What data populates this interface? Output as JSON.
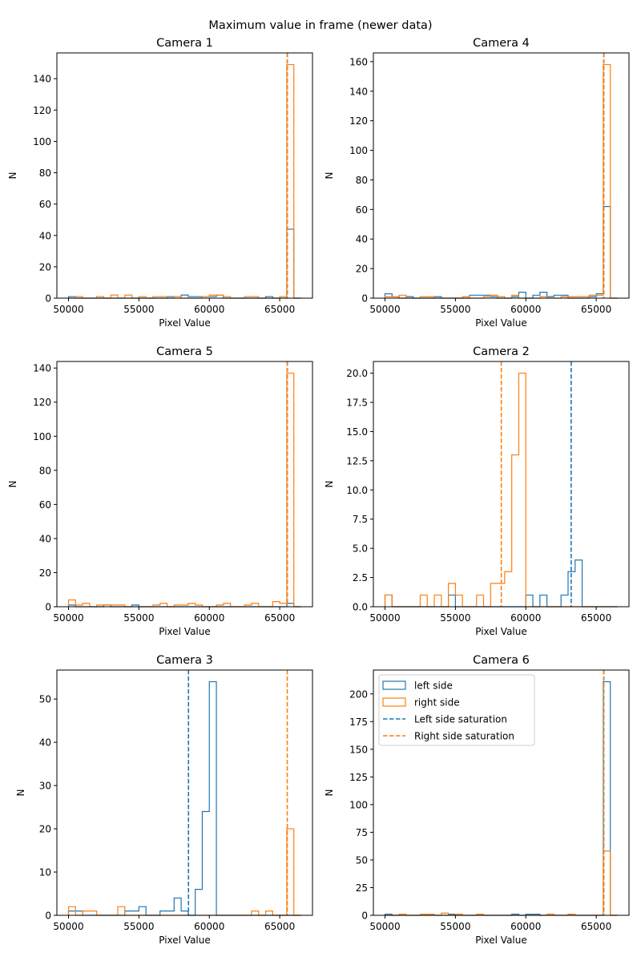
{
  "chart_data": {
    "type": "histogram",
    "title": "Maximum value in frame (newer data)",
    "colors": {
      "left": "#1f77b4",
      "right": "#ff7f0e"
    },
    "bins": {
      "start": 50000,
      "width": 500,
      "count": 33
    },
    "xlim": [
      49175,
      67325
    ],
    "xticks": [
      50000,
      55000,
      60000,
      65000
    ],
    "xlabel": "Pixel Value",
    "ylabel": "N",
    "legend": {
      "location": "upper-left",
      "panel": "Camera 6",
      "entries": [
        "left side",
        "right side",
        "Left side saturation",
        "Right side saturation"
      ]
    },
    "panels": [
      {
        "title": "Camera 1",
        "ylim": [
          0,
          156.45
        ],
        "yticks": [
          0,
          20,
          40,
          60,
          80,
          100,
          120,
          140
        ],
        "yticklabels": [
          "0",
          "20",
          "40",
          "60",
          "80",
          "100",
          "120",
          "140"
        ],
        "left": [
          1,
          0,
          0,
          0,
          0,
          0,
          0,
          0,
          0,
          0,
          0,
          0,
          0,
          0,
          1,
          1,
          2,
          1,
          1,
          1,
          1,
          2,
          0,
          0,
          0,
          0,
          0,
          0,
          1,
          0,
          0,
          44,
          0
        ],
        "right": [
          0,
          1,
          0,
          0,
          1,
          0,
          2,
          0,
          2,
          0,
          1,
          0,
          1,
          1,
          0,
          1,
          0,
          0,
          0,
          1,
          2,
          2,
          1,
          0,
          0,
          1,
          1,
          0,
          0,
          0,
          1,
          149,
          0
        ],
        "left_saturation": 65535,
        "right_saturation": 65535
      },
      {
        "title": "Camera 4",
        "ylim": [
          0,
          165.9
        ],
        "yticks": [
          0,
          20,
          40,
          60,
          80,
          100,
          120,
          140,
          160
        ],
        "yticklabels": [
          "0",
          "20",
          "40",
          "60",
          "80",
          "100",
          "120",
          "140",
          "160"
        ],
        "left": [
          3,
          1,
          0,
          1,
          0,
          0,
          0,
          1,
          0,
          0,
          0,
          0,
          2,
          2,
          2,
          1,
          0,
          0,
          1,
          4,
          0,
          2,
          4,
          1,
          2,
          2,
          0,
          0,
          0,
          1,
          3,
          62,
          0
        ],
        "right": [
          1,
          1,
          2,
          0,
          0,
          1,
          1,
          0,
          0,
          0,
          0,
          1,
          0,
          0,
          1,
          2,
          1,
          0,
          2,
          0,
          0,
          0,
          1,
          0,
          0,
          1,
          1,
          1,
          1,
          2,
          2,
          158,
          0
        ],
        "left_saturation": 65535,
        "right_saturation": 65535
      },
      {
        "title": "Camera 5",
        "ylim": [
          0,
          143.85
        ],
        "yticks": [
          0,
          20,
          40,
          60,
          80,
          100,
          120,
          140
        ],
        "yticklabels": [
          "0",
          "20",
          "40",
          "60",
          "80",
          "100",
          "120",
          "140"
        ],
        "left": [
          1,
          0,
          0,
          0,
          0,
          1,
          0,
          0,
          0,
          1,
          0,
          0,
          0,
          0,
          0,
          0,
          0,
          0,
          0,
          0,
          0,
          0,
          0,
          0,
          0,
          0,
          0,
          0,
          0,
          0,
          0,
          2,
          0
        ],
        "right": [
          4,
          1,
          2,
          0,
          1,
          1,
          1,
          1,
          0,
          0,
          0,
          0,
          1,
          2,
          0,
          1,
          1,
          2,
          1,
          0,
          0,
          1,
          2,
          0,
          0,
          1,
          2,
          0,
          0,
          3,
          2,
          137,
          0
        ],
        "left_saturation": 65535,
        "right_saturation": 65535
      },
      {
        "title": "Camera 2",
        "ylim": [
          0,
          21
        ],
        "yticks": [
          0,
          2.5,
          5,
          7.5,
          10,
          12.5,
          15,
          17.5,
          20
        ],
        "yticklabels": [
          "0.0",
          "2.5",
          "5.0",
          "7.5",
          "10.0",
          "12.5",
          "15.0",
          "17.5",
          "20.0"
        ],
        "left": [
          1,
          0,
          0,
          0,
          0,
          0,
          0,
          0,
          0,
          1,
          0,
          0,
          0,
          0,
          0,
          0,
          0,
          0,
          0,
          0,
          1,
          0,
          1,
          0,
          0,
          1,
          3,
          4,
          0,
          0,
          0,
          0,
          0
        ],
        "right": [
          1,
          0,
          0,
          0,
          0,
          1,
          0,
          1,
          0,
          2,
          1,
          0,
          0,
          1,
          0,
          2,
          2,
          3,
          13,
          20,
          0,
          0,
          0,
          0,
          0,
          0,
          0,
          0,
          0,
          0,
          0,
          0,
          0
        ],
        "left_saturation": 63220,
        "right_saturation": 58257
      },
      {
        "title": "Camera 3",
        "ylim": [
          0,
          56.7
        ],
        "yticks": [
          0,
          10,
          20,
          30,
          40,
          50
        ],
        "yticklabels": [
          "0",
          "10",
          "20",
          "30",
          "40",
          "50"
        ],
        "left": [
          1,
          1,
          0,
          0,
          0,
          0,
          0,
          0,
          1,
          1,
          2,
          0,
          0,
          1,
          1,
          4,
          1,
          0,
          6,
          24,
          54,
          0,
          0,
          0,
          0,
          0,
          0,
          0,
          0,
          0,
          0,
          0,
          0
        ],
        "right": [
          2,
          0,
          1,
          1,
          0,
          0,
          0,
          2,
          0,
          0,
          0,
          0,
          0,
          0,
          0,
          0,
          0,
          0,
          0,
          0,
          0,
          0,
          0,
          0,
          0,
          0,
          1,
          0,
          1,
          0,
          0,
          20,
          0
        ],
        "left_saturation": 58520,
        "right_saturation": 65535
      },
      {
        "title": "Camera 6",
        "ylim": [
          0,
          221.55
        ],
        "yticks": [
          0,
          25,
          50,
          75,
          100,
          125,
          150,
          175,
          200
        ],
        "yticklabels": [
          "0",
          "25",
          "50",
          "75",
          "100",
          "125",
          "150",
          "175",
          "200"
        ],
        "left": [
          1,
          0,
          0,
          0,
          0,
          0,
          0,
          0,
          0,
          1,
          0,
          0,
          0,
          0,
          0,
          0,
          0,
          0,
          1,
          0,
          1,
          1,
          0,
          0,
          0,
          0,
          0,
          0,
          0,
          0,
          0,
          211,
          0
        ],
        "right": [
          0,
          0,
          1,
          0,
          0,
          1,
          1,
          0,
          2,
          0,
          1,
          0,
          0,
          1,
          0,
          0,
          0,
          0,
          0,
          0,
          0,
          0,
          0,
          1,
          0,
          0,
          1,
          0,
          0,
          0,
          0,
          58,
          0
        ],
        "left_saturation": 65535,
        "right_saturation": 65535
      }
    ]
  }
}
